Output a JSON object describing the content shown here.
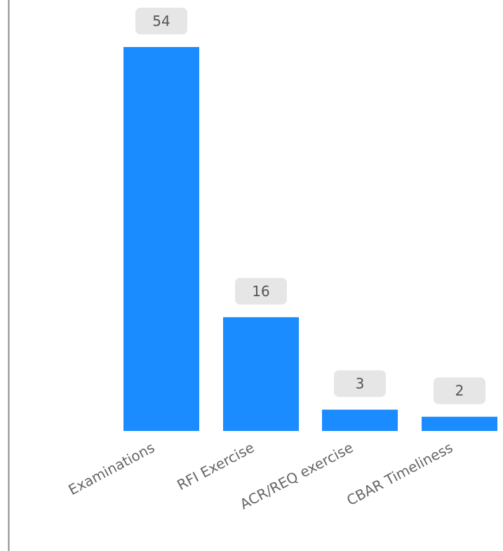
{
  "chart_data": {
    "type": "bar",
    "categories": [
      "Examinations",
      "RFI Exercise",
      "ACR/REQ exercise",
      "CBAR Timeliness"
    ],
    "values": [
      54,
      16,
      3,
      2
    ],
    "title": "",
    "xlabel": "",
    "ylabel": "",
    "ylim": [
      0,
      54
    ],
    "grid": false,
    "legend": "none",
    "bar_color": "#1a8cff",
    "axis_color": "#8c8c8c",
    "data_label_bg": "#e6e6e6"
  }
}
